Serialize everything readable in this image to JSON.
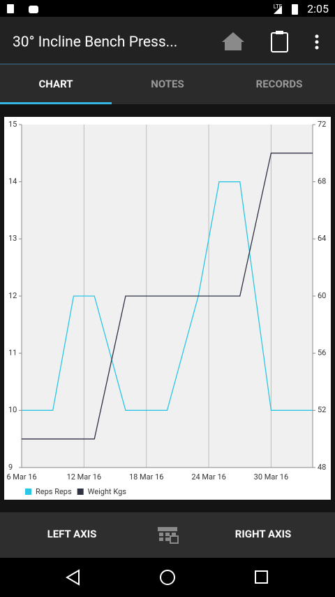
{
  "status_bar": {
    "network": "LTE",
    "time": "2:05"
  },
  "toolbar": {
    "title": "30° Incline Bench Press..."
  },
  "tabs": [
    "CHART",
    "NOTES",
    "RECORDS"
  ],
  "chart_data": {
    "type": "line",
    "x": [
      "2016-03-06",
      "2016-03-09",
      "2016-03-11",
      "2016-03-13",
      "2016-03-16",
      "2016-03-20",
      "2016-03-23",
      "2016-03-25",
      "2016-03-27",
      "2016-03-30",
      "2016-04-03"
    ],
    "series": [
      {
        "name": "Reps Reps",
        "color": "#29c6e6",
        "values": [
          10,
          10,
          12,
          12,
          10,
          10,
          12,
          14,
          14,
          10,
          10
        ]
      },
      {
        "name": "Weight Kgs",
        "color": "#2e3142",
        "axis": "y2",
        "values": [
          50,
          50,
          50,
          50,
          60,
          60,
          60,
          60,
          60,
          70,
          70
        ]
      }
    ],
    "xlim": [
      "2016-03-06",
      "2016-04-03"
    ],
    "xticks": [
      {
        "value": "2016-03-06",
        "label": "6 Mar 16"
      },
      {
        "value": "2016-03-12",
        "label": "12 Mar 16"
      },
      {
        "value": "2016-03-18",
        "label": "18 Mar 16"
      },
      {
        "value": "2016-03-24",
        "label": "24 Mar 16"
      },
      {
        "value": "2016-03-30",
        "label": "30 Mar 16"
      }
    ],
    "ylim": [
      9,
      15
    ],
    "yticks": [
      9,
      10,
      11,
      12,
      13,
      14,
      15
    ],
    "y2lim": [
      48,
      72
    ],
    "y2ticks": [
      48,
      52,
      56,
      60,
      64,
      68,
      72
    ],
    "xgrid": true,
    "ygrid": false,
    "legend": "bottom-left"
  },
  "bottom_bar": {
    "left": "LEFT AXIS",
    "right": "RIGHT AXIS"
  }
}
